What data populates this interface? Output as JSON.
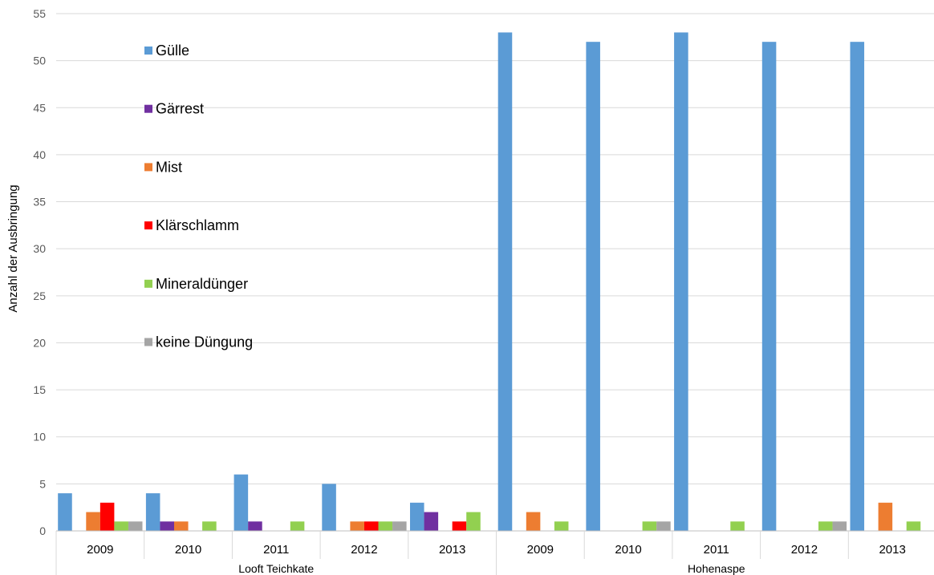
{
  "chart_data": {
    "type": "bar",
    "ylabel": "Anzahl der Ausbringung",
    "xlabel": "",
    "ylim": [
      0,
      55
    ],
    "yticks": [
      0,
      5,
      10,
      15,
      20,
      25,
      30,
      35,
      40,
      45,
      50,
      55
    ],
    "grid": true,
    "legend_position": "top-left",
    "groups": [
      {
        "name": "Looft Teichkate",
        "categories": [
          "2009",
          "2010",
          "2011",
          "2012",
          "2013"
        ]
      },
      {
        "name": "Hohenaspe",
        "categories": [
          "2009",
          "2010",
          "2011",
          "2012",
          "2013"
        ]
      }
    ],
    "categories": [
      "2009",
      "2010",
      "2011",
      "2012",
      "2013",
      "2009",
      "2010",
      "2011",
      "2012",
      "2013"
    ],
    "series": [
      {
        "name": "Gülle",
        "color": "#5B9BD5",
        "values": [
          4,
          4,
          6,
          5,
          3,
          53,
          52,
          53,
          52,
          52
        ]
      },
      {
        "name": "Gärrest",
        "color": "#7030A0",
        "values": [
          0,
          1,
          1,
          0,
          2,
          0,
          0,
          0,
          0,
          0
        ]
      },
      {
        "name": "Mist",
        "color": "#ED7D31",
        "values": [
          2,
          1,
          0,
          1,
          0,
          2,
          0,
          0,
          0,
          3
        ]
      },
      {
        "name": "Klärschlamm",
        "color": "#FF0000",
        "values": [
          3,
          0,
          0,
          1,
          1,
          0,
          0,
          0,
          0,
          0
        ]
      },
      {
        "name": "Mineraldünger",
        "color": "#92D050",
        "values": [
          1,
          1,
          1,
          1,
          2,
          1,
          1,
          1,
          1,
          1
        ]
      },
      {
        "name": "keine Düngung",
        "color": "#A5A5A5",
        "values": [
          1,
          0,
          0,
          1,
          0,
          0,
          1,
          0,
          1,
          0
        ]
      }
    ]
  }
}
